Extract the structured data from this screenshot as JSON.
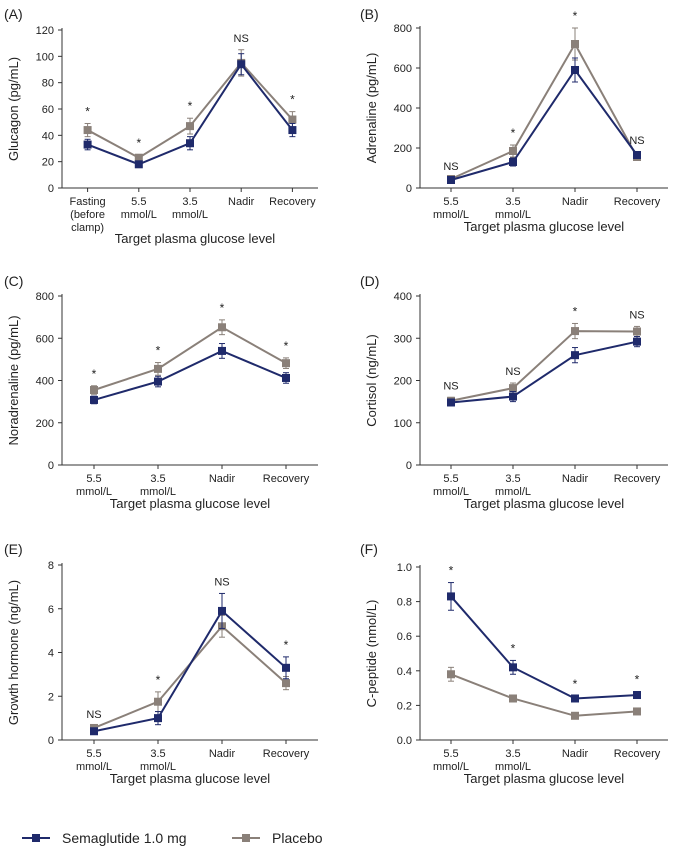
{
  "colors": {
    "semaglutide": "#1f2a6b",
    "placebo": "#8a8079"
  },
  "legend": {
    "semaglutide_label": "Semaglutide 1.0 mg",
    "placebo_label": "Placebo"
  },
  "chart_data": [
    {
      "type": "line",
      "panel": "(A)",
      "ylabel": "Glucagon (pg/mL)",
      "xlabel": "Target plasma glucose level",
      "categories": [
        "Fasting\n(before\nclamp)",
        "5.5\nmmol/L",
        "3.5\nmmol/L",
        "Nadir",
        "Recovery"
      ],
      "ylim": [
        0,
        120
      ],
      "yticks": [
        0,
        20,
        40,
        60,
        80,
        100,
        120
      ],
      "annotations": [
        "*",
        "*",
        "*",
        "NS",
        "*"
      ],
      "series": [
        {
          "name": "Semaglutide 1.0 mg",
          "values": [
            33,
            18,
            34,
            94,
            44
          ],
          "errors": [
            4,
            2,
            5,
            8,
            5
          ]
        },
        {
          "name": "Placebo",
          "values": [
            44,
            23,
            47,
            95,
            52
          ],
          "errors": [
            5,
            2,
            6,
            10,
            6
          ]
        }
      ]
    },
    {
      "type": "line",
      "panel": "(B)",
      "ylabel": "Adrenaline (pg/mL)",
      "xlabel": "Target plasma glucose level",
      "categories": [
        "5.5\nmmol/L",
        "3.5\nmmol/L",
        "Nadir",
        "Recovery"
      ],
      "ylim": [
        0,
        800
      ],
      "yticks": [
        0,
        200,
        400,
        600,
        800
      ],
      "annotations": [
        "NS",
        "*",
        "*",
        "NS"
      ],
      "series": [
        {
          "name": "Semaglutide 1.0 mg",
          "values": [
            40,
            130,
            590,
            165
          ],
          "errors": [
            5,
            20,
            60,
            15
          ]
        },
        {
          "name": "Placebo",
          "values": [
            45,
            185,
            720,
            155
          ],
          "errors": [
            5,
            30,
            80,
            15
          ]
        }
      ]
    },
    {
      "type": "line",
      "panel": "(C)",
      "ylabel": "Noradrenaline (pg/mL)",
      "xlabel": "Target plasma glucose level",
      "categories": [
        "5.5\nmmol/L",
        "3.5\nmmol/L",
        "Nadir",
        "Recovery"
      ],
      "ylim": [
        0,
        800
      ],
      "yticks": [
        0,
        200,
        400,
        600,
        800
      ],
      "annotations": [
        "*",
        "*",
        "*",
        "*"
      ],
      "series": [
        {
          "name": "Semaglutide 1.0 mg",
          "values": [
            308,
            395,
            540,
            412
          ],
          "errors": [
            18,
            25,
            35,
            25
          ]
        },
        {
          "name": "Placebo",
          "values": [
            355,
            455,
            652,
            482
          ],
          "errors": [
            20,
            30,
            35,
            25
          ]
        }
      ]
    },
    {
      "type": "line",
      "panel": "(D)",
      "ylabel": "Cortisol (ng/mL)",
      "xlabel": "Target plasma glucose level",
      "categories": [
        "5.5\nmmol/L",
        "3.5\nmmol/L",
        "Nadir",
        "Recovery"
      ],
      "ylim": [
        0,
        400
      ],
      "yticks": [
        0,
        100,
        200,
        300,
        400
      ],
      "annotations": [
        "NS",
        "NS",
        "*",
        "NS"
      ],
      "series": [
        {
          "name": "Semaglutide 1.0 mg",
          "values": [
            148,
            162,
            260,
            292
          ],
          "errors": [
            8,
            12,
            18,
            12
          ]
        },
        {
          "name": "Placebo",
          "values": [
            152,
            182,
            317,
            316
          ],
          "errors": [
            8,
            12,
            18,
            12
          ]
        }
      ]
    },
    {
      "type": "line",
      "panel": "(E)",
      "ylabel": "Growth hormone (ng/mL)",
      "xlabel": "Target plasma glucose level",
      "categories": [
        "5.5\nmmol/L",
        "3.5\nmmol/L",
        "Nadir",
        "Recovery"
      ],
      "ylim": [
        0,
        8
      ],
      "yticks": [
        0,
        2,
        4,
        6,
        8
      ],
      "annotations": [
        "NS",
        "*",
        "NS",
        "*"
      ],
      "series": [
        {
          "name": "Semaglutide 1.0 mg",
          "values": [
            0.4,
            1.0,
            5.9,
            3.3
          ],
          "errors": [
            0.1,
            0.3,
            0.8,
            0.5
          ]
        },
        {
          "name": "Placebo",
          "values": [
            0.55,
            1.75,
            5.2,
            2.6
          ],
          "errors": [
            0.1,
            0.45,
            0.5,
            0.3
          ]
        }
      ]
    },
    {
      "type": "line",
      "panel": "(F)",
      "ylabel": "C-peptide (nmol/L)",
      "xlabel": "Target plasma glucose level",
      "categories": [
        "5.5\nmmol/L",
        "3.5\nmmol/L",
        "Nadir",
        "Recovery"
      ],
      "ylim": [
        0,
        1.0
      ],
      "yticks": [
        0.0,
        0.2,
        0.4,
        0.6,
        0.8,
        1.0
      ],
      "annotations": [
        "*",
        "*",
        "*",
        "*"
      ],
      "series": [
        {
          "name": "Semaglutide 1.0 mg",
          "values": [
            0.83,
            0.42,
            0.24,
            0.26
          ],
          "errors": [
            0.08,
            0.04,
            0.015,
            0.02
          ]
        },
        {
          "name": "Placebo",
          "values": [
            0.38,
            0.24,
            0.14,
            0.165
          ],
          "errors": [
            0.04,
            0.02,
            0.01,
            0.015
          ]
        }
      ]
    }
  ]
}
